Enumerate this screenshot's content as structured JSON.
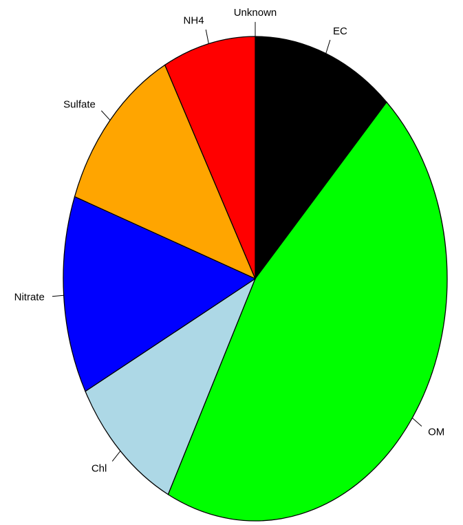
{
  "chart_data": {
    "type": "pie",
    "title": "",
    "direction": "clockwise",
    "start": "12 o'clock",
    "slices": [
      {
        "label": "EC",
        "value": 0.12,
        "color": "#000000"
      },
      {
        "label": "OM",
        "value": 0.455,
        "color": "#00ff00"
      },
      {
        "label": "Chl",
        "value": 0.098,
        "color": "#add8e6"
      },
      {
        "label": "Nitrate",
        "value": 0.132,
        "color": "#0000ff"
      },
      {
        "label": "Sulfate",
        "value": 0.117,
        "color": "#ffa500"
      },
      {
        "label": "NH4",
        "value": 0.078,
        "color": "#ff0000"
      },
      {
        "label": "Unknown",
        "value": 0.0,
        "color": "#ffffff"
      }
    ]
  }
}
